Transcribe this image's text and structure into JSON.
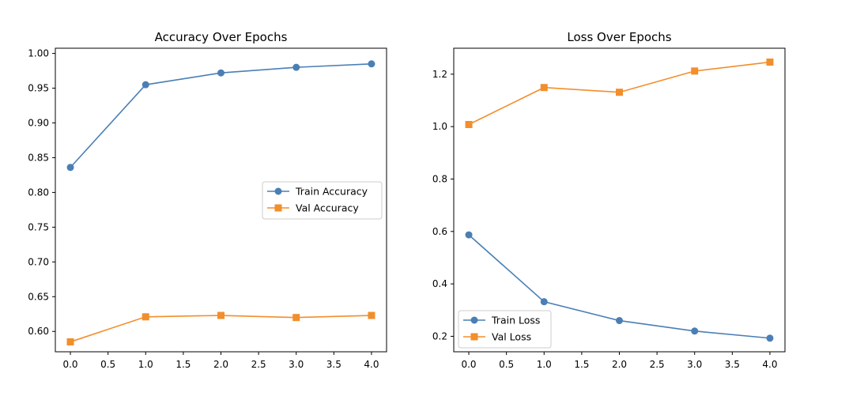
{
  "chart_data": [
    {
      "type": "line",
      "title": "Accuracy Over Epochs",
      "xlabel": "",
      "ylabel": "",
      "x": [
        0,
        1,
        2,
        3,
        4
      ],
      "xlim": [
        -0.2,
        4.2
      ],
      "ylim": [
        0.5707,
        1.0075
      ],
      "xticks": [
        "0.0",
        "0.5",
        "1.0",
        "1.5",
        "2.0",
        "2.5",
        "3.0",
        "3.5",
        "4.0"
      ],
      "yticks": [
        "0.60",
        "0.65",
        "0.70",
        "0.75",
        "0.80",
        "0.85",
        "0.90",
        "0.95",
        "1.00"
      ],
      "grid": false,
      "legend": "center-right",
      "series": [
        {
          "name": "Train Accuracy",
          "values": [
            0.836,
            0.955,
            0.972,
            0.98,
            0.985
          ],
          "color": "#4a7fb5",
          "marker": "circle"
        },
        {
          "name": "Val Accuracy",
          "values": [
            0.585,
            0.621,
            0.623,
            0.62,
            0.623
          ],
          "color": "#f28e2b",
          "marker": "square"
        }
      ]
    },
    {
      "type": "line",
      "title": "Loss Over Epochs",
      "xlabel": "",
      "ylabel": "",
      "x": [
        0,
        1,
        2,
        3,
        4
      ],
      "xlim": [
        -0.2,
        4.2
      ],
      "ylim": [
        0.141,
        1.299
      ],
      "xticks": [
        "0.0",
        "0.5",
        "1.0",
        "1.5",
        "2.0",
        "2.5",
        "3.0",
        "3.5",
        "4.0"
      ],
      "yticks": [
        "0.2",
        "0.4",
        "0.6",
        "0.8",
        "1.0",
        "1.2"
      ],
      "grid": false,
      "legend": "lower-left",
      "series": [
        {
          "name": "Train Loss",
          "values": [
            0.587,
            0.332,
            0.26,
            0.22,
            0.193
          ],
          "color": "#4a7fb5",
          "marker": "circle"
        },
        {
          "name": "Val Loss",
          "values": [
            1.008,
            1.149,
            1.131,
            1.212,
            1.246
          ],
          "color": "#f28e2b",
          "marker": "square"
        }
      ]
    }
  ]
}
